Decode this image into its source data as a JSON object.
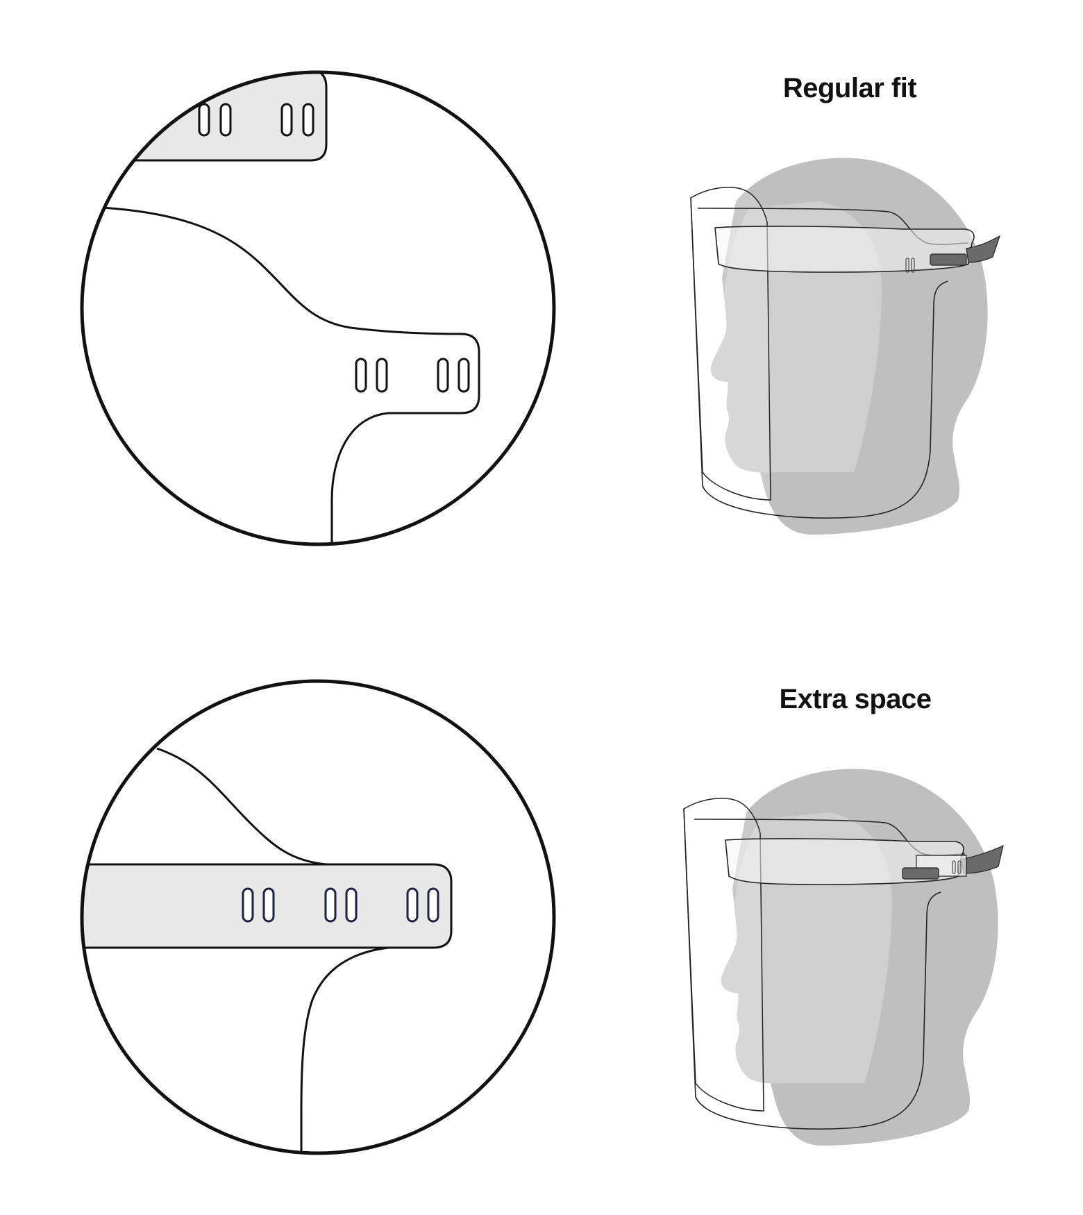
{
  "panels": [
    {
      "title": "Regular fit"
    },
    {
      "title": "Extra space"
    }
  ],
  "colors": {
    "outline": "#111111",
    "strap_fill": "#e8e8e8",
    "head_back": "#bfbfbf",
    "head_front": "#d0d0d0",
    "headband_fill": "#f2f2f2",
    "clip": "#6a6a6a"
  }
}
